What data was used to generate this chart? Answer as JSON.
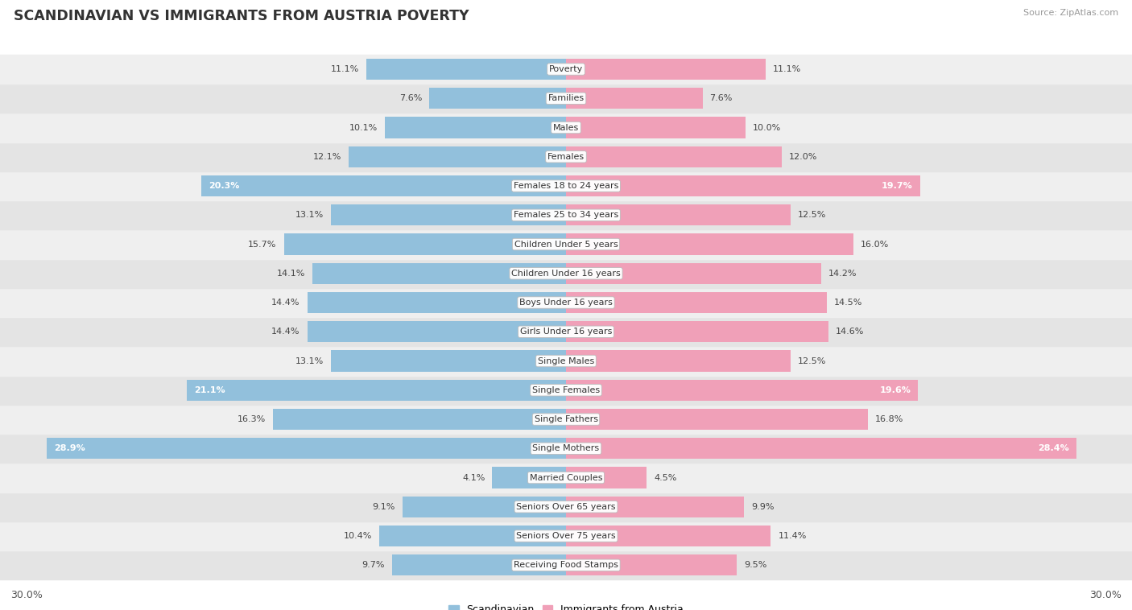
{
  "title": "SCANDINAVIAN VS IMMIGRANTS FROM AUSTRIA POVERTY",
  "source": "Source: ZipAtlas.com",
  "categories": [
    "Poverty",
    "Families",
    "Males",
    "Females",
    "Females 18 to 24 years",
    "Females 25 to 34 years",
    "Children Under 5 years",
    "Children Under 16 years",
    "Boys Under 16 years",
    "Girls Under 16 years",
    "Single Males",
    "Single Females",
    "Single Fathers",
    "Single Mothers",
    "Married Couples",
    "Seniors Over 65 years",
    "Seniors Over 75 years",
    "Receiving Food Stamps"
  ],
  "scandinavian": [
    11.1,
    7.6,
    10.1,
    12.1,
    20.3,
    13.1,
    15.7,
    14.1,
    14.4,
    14.4,
    13.1,
    21.1,
    16.3,
    28.9,
    4.1,
    9.1,
    10.4,
    9.7
  ],
  "austria": [
    11.1,
    7.6,
    10.0,
    12.0,
    19.7,
    12.5,
    16.0,
    14.2,
    14.5,
    14.6,
    12.5,
    19.6,
    16.8,
    28.4,
    4.5,
    9.9,
    11.4,
    9.5
  ],
  "blue_color": "#92C0DC",
  "pink_color": "#F0A0B8",
  "max_val": 30.0,
  "legend_blue": "Scandinavian",
  "legend_pink": "Immigrants from Austria",
  "bg_even": "#EFEFEF",
  "bg_odd": "#E4E4E4",
  "label_inside_threshold": 18.0
}
